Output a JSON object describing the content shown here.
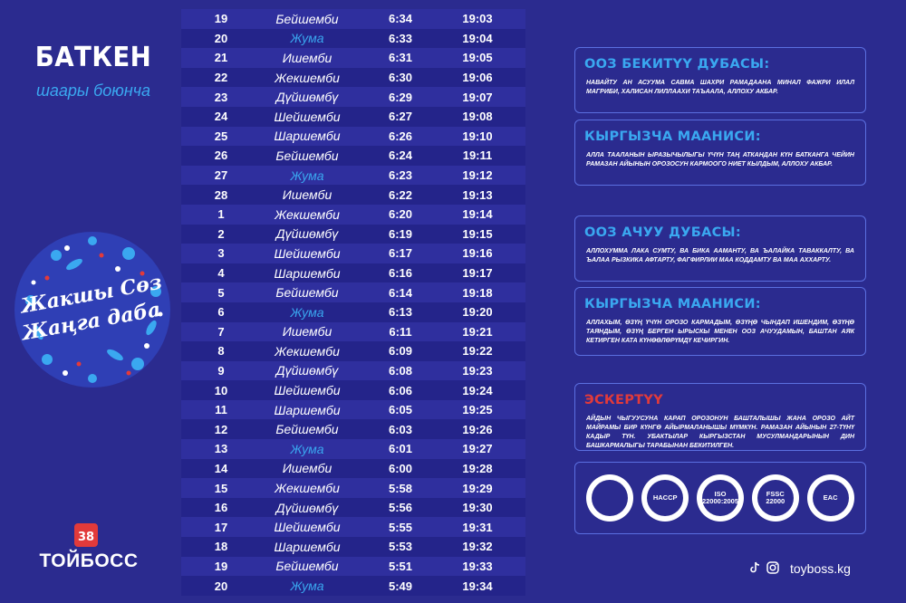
{
  "city": {
    "name": "БАТКЕН",
    "subtitle": "шаары боюнча"
  },
  "slogan": {
    "line1": "Жакшы Сөз",
    "line2": "Жаңга даба"
  },
  "brand": {
    "name": "ТОЙБОСС",
    "site": "toyboss.kg"
  },
  "schedule": [
    {
      "day": "19",
      "weekday": "Бейшемби",
      "a": "6:34",
      "b": "19:03",
      "friday": false
    },
    {
      "day": "20",
      "weekday": "Жума",
      "a": "6:33",
      "b": "19:04",
      "friday": true
    },
    {
      "day": "21",
      "weekday": "Ишемби",
      "a": "6:31",
      "b": "19:05",
      "friday": false
    },
    {
      "day": "22",
      "weekday": "Жекшемби",
      "a": "6:30",
      "b": "19:06",
      "friday": false
    },
    {
      "day": "23",
      "weekday": "Дүйшөмбү",
      "a": "6:29",
      "b": "19:07",
      "friday": false
    },
    {
      "day": "24",
      "weekday": "Шейшемби",
      "a": "6:27",
      "b": "19:08",
      "friday": false
    },
    {
      "day": "25",
      "weekday": "Шаршемби",
      "a": "6:26",
      "b": "19:10",
      "friday": false
    },
    {
      "day": "26",
      "weekday": "Бейшемби",
      "a": "6:24",
      "b": "19:11",
      "friday": false
    },
    {
      "day": "27",
      "weekday": "Жума",
      "a": "6:23",
      "b": "19:12",
      "friday": true
    },
    {
      "day": "28",
      "weekday": "Ишемби",
      "a": "6:22",
      "b": "19:13",
      "friday": false
    },
    {
      "day": "1",
      "weekday": "Жекшемби",
      "a": "6:20",
      "b": "19:14",
      "friday": false
    },
    {
      "day": "2",
      "weekday": "Дүйшөмбү",
      "a": "6:19",
      "b": "19:15",
      "friday": false
    },
    {
      "day": "3",
      "weekday": "Шейшемби",
      "a": "6:17",
      "b": "19:16",
      "friday": false
    },
    {
      "day": "4",
      "weekday": "Шаршемби",
      "a": "6:16",
      "b": "19:17",
      "friday": false
    },
    {
      "day": "5",
      "weekday": "Бейшемби",
      "a": "6:14",
      "b": "19:18",
      "friday": false
    },
    {
      "day": "6",
      "weekday": "Жума",
      "a": "6:13",
      "b": "19:20",
      "friday": true
    },
    {
      "day": "7",
      "weekday": "Ишемби",
      "a": "6:11",
      "b": "19:21",
      "friday": false
    },
    {
      "day": "8",
      "weekday": "Жекшемби",
      "a": "6:09",
      "b": "19:22",
      "friday": false
    },
    {
      "day": "9",
      "weekday": "Дүйшөмбү",
      "a": "6:08",
      "b": "19:23",
      "friday": false
    },
    {
      "day": "10",
      "weekday": "Шейшемби",
      "a": "6:06",
      "b": "19:24",
      "friday": false
    },
    {
      "day": "11",
      "weekday": "Шаршемби",
      "a": "6:05",
      "b": "19:25",
      "friday": false
    },
    {
      "day": "12",
      "weekday": "Бейшемби",
      "a": "6:03",
      "b": "19:26",
      "friday": false
    },
    {
      "day": "13",
      "weekday": "Жума",
      "a": "6:01",
      "b": "19:27",
      "friday": true
    },
    {
      "day": "14",
      "weekday": "Ишемби",
      "a": "6:00",
      "b": "19:28",
      "friday": false
    },
    {
      "day": "15",
      "weekday": "Жекшемби",
      "a": "5:58",
      "b": "19:29",
      "friday": false
    },
    {
      "day": "16",
      "weekday": "Дүйшөмбү",
      "a": "5:56",
      "b": "19:30",
      "friday": false
    },
    {
      "day": "17",
      "weekday": "Шейшемби",
      "a": "5:55",
      "b": "19:31",
      "friday": false
    },
    {
      "day": "18",
      "weekday": "Шаршемби",
      "a": "5:53",
      "b": "19:32",
      "friday": false
    },
    {
      "day": "19",
      "weekday": "Бейшемби",
      "a": "5:51",
      "b": "19:33",
      "friday": false
    },
    {
      "day": "20",
      "weekday": "Жума",
      "a": "5:49",
      "b": "19:34",
      "friday": true
    }
  ],
  "panels": {
    "p1": {
      "title": "ООЗ БЕКИТҮҮ ДУБАСЫ:",
      "text": "НАВАЙТУ АН АСУУМА САВМА ШАХРИ РАМАДААНА МИНАЛ ФАЖРИ ИЛАЛ МАГРИБИ, ХАЛИСАН ЛИЛЛААХИ ТАЪААЛА, АЛЛОХУ АКБАР."
    },
    "p2": {
      "title": "КЫРГЫЗЧА МААНИСИ:",
      "text": "АЛЛА ТААЛАНЫН ЫРАЗЫЧЫЛЫГЫ ҮЧҮН ТАҢ АТКАНДАН КҮН БАТКАНГА ЧЕЙИН РАМАЗАН АЙЫНЫН ОРОЗОСУН КАРМООГО НИЕТ КЫЛДЫМ, АЛЛОХУ АКБАР."
    },
    "p3": {
      "title": "ООЗ  АЧУУ ДУБАСЫ:",
      "text": "АЛЛОХУММА ЛАКА СУМТУ, ВА БИКА ААМАНТУ, ВА ЪАЛАЙКА ТАВАККАЛТУ, ВА ЪАЛАА РЫЗКИКА АФТАРТУ, ФАГФИРЛИИ МАА КОДДАМТУ ВА МАА АХХАРТУ."
    },
    "p4": {
      "title": "КЫРГЫЗЧА МААНИСИ:",
      "text": "АЛЛАХЫМ, ӨЗҮҢ ҮЧҮН ОРОЗО КАРМАДЫМ, ӨЗҮҢӨ ЧЫНДАП ИШЕНДИМ, ӨЗҮҢӨ ТАЯНДЫМ, ӨЗҮҢ БЕРГЕН ЫРЫСКЫ МЕНЕН ООЗ АЧУУДАМЫН, БАШТАН АЯК КЕТИРГЕН КАТА КҮНӨӨЛӨРҮМДҮ КЕЧИРГИН."
    },
    "p5": {
      "title": "ЭСКЕРТҮҮ",
      "text": "АЙДЫН ЧЫГУУСУНА КАРАП ОРОЗОНУН БАШТАЛЫШЫ ЖАНА ОРОЗО АЙТ МАЙРАМЫ БИР КҮНГӨ АЙЫРМАЛАНЫШЫ МҮМКҮН. РАМАЗАН АЙЫНЫН 27-ТҮНҮ КАДЫР ТҮН. УБАКТЫЛАР КЫРГЫЗСТАН МУСУЛМАНДАРЫНЫН ДИН БАШКАРМАЛЫГЫ ТАРАБЫНАН БЕКИТИЛГЕН."
    }
  },
  "certs": [
    "",
    "HACCP",
    "ISO 22000:2005",
    "FSSC 22000",
    "EAC"
  ],
  "icons": [
    "tiktok-icon",
    "instagram-icon"
  ]
}
